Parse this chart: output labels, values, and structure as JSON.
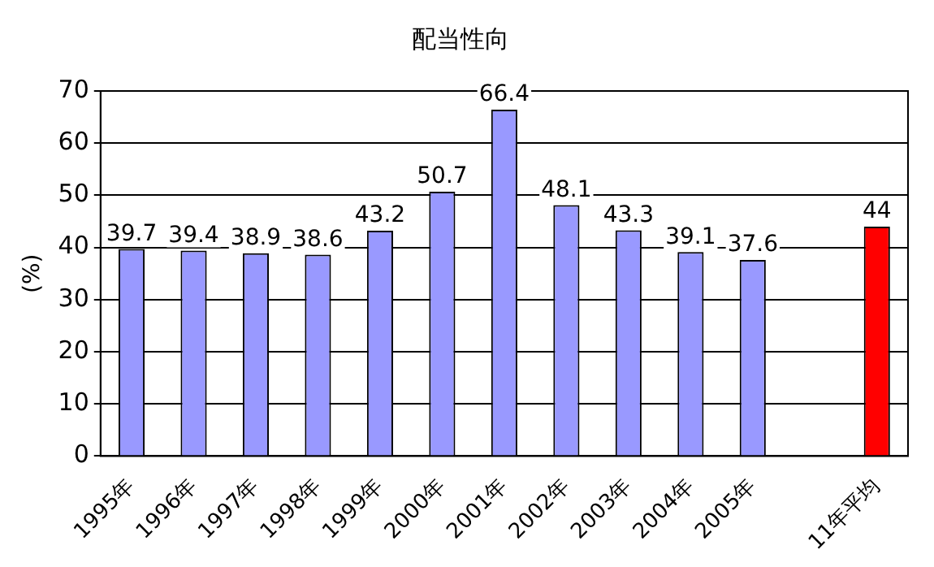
{
  "chart_data": {
    "type": "bar",
    "title": "配当性向",
    "ylabel": "(%)",
    "categories": [
      "1995年",
      "1996年",
      "1997年",
      "1998年",
      "1999年",
      "2000年",
      "2001年",
      "2002年",
      "2003年",
      "2004年",
      "2005年",
      null,
      "11年平均"
    ],
    "values": [
      39.7,
      39.4,
      38.9,
      38.6,
      43.2,
      50.7,
      66.4,
      48.1,
      43.3,
      39.1,
      37.6,
      null,
      44
    ],
    "colors": [
      "#9999ff",
      "#9999ff",
      "#9999ff",
      "#9999ff",
      "#9999ff",
      "#9999ff",
      "#9999ff",
      "#9999ff",
      "#9999ff",
      "#9999ff",
      "#9999ff",
      "#9999ff",
      "#ff0000"
    ],
    "ylim": [
      0,
      70
    ],
    "yticks": [
      0,
      10,
      20,
      30,
      40,
      50,
      60,
      70
    ],
    "grid": "y",
    "data_labels": true,
    "legend": false
  }
}
